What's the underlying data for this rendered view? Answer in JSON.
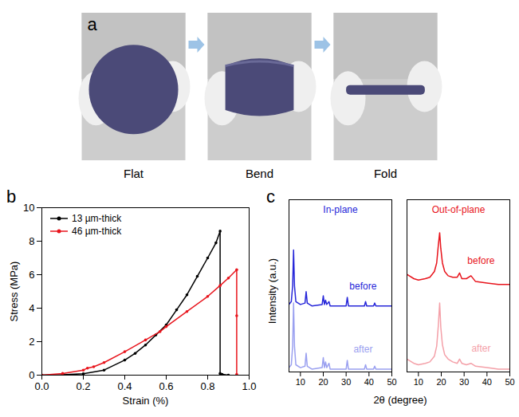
{
  "panel_a": {
    "panel": "a",
    "photos": [
      {
        "label": "Flat"
      },
      {
        "label": "Bend"
      },
      {
        "label": "Fold"
      }
    ]
  },
  "chart_data": [
    {
      "type": "line",
      "panel": "b",
      "xlabel": "Strain (%)",
      "ylabel": "Stress (MPa)",
      "xlim": [
        0,
        1.0
      ],
      "xticks": [
        {
          "value": 0,
          "label": "0.0"
        },
        {
          "value": 0.2,
          "label": "0.2"
        },
        {
          "value": 0.4,
          "label": "0.4"
        },
        {
          "value": 0.6,
          "label": "0.6"
        },
        {
          "value": 0.8,
          "label": "0.8"
        },
        {
          "value": 1.0,
          "label": "1.0"
        }
      ],
      "ylim": [
        0,
        10
      ],
      "yticks": [
        0,
        2,
        4,
        6,
        8,
        10
      ],
      "legend": "top-left",
      "series": [
        {
          "name": "13 µm-thick",
          "color": "#000000",
          "marker": "circle",
          "x": [
            0,
            0.1,
            0.2,
            0.3,
            0.4,
            0.45,
            0.5,
            0.55,
            0.6,
            0.65,
            0.7,
            0.75,
            0.8,
            0.84,
            0.86,
            0.86,
            0.87,
            0.9
          ],
          "values": [
            0,
            0.02,
            0.08,
            0.3,
            0.9,
            1.3,
            1.8,
            2.4,
            3.0,
            3.9,
            4.8,
            5.9,
            7.0,
            7.9,
            8.6,
            0.1,
            0.05,
            0
          ]
        },
        {
          "name": "46 µm-thick",
          "color": "#e8141c",
          "marker": "circle",
          "x": [
            0,
            0.1,
            0.2,
            0.22,
            0.25,
            0.3,
            0.4,
            0.5,
            0.57,
            0.6,
            0.7,
            0.8,
            0.86,
            0.9,
            0.94,
            0.94,
            0.94
          ],
          "values": [
            0,
            0.1,
            0.3,
            0.42,
            0.5,
            0.75,
            1.4,
            2.1,
            2.6,
            2.9,
            3.8,
            4.7,
            5.35,
            5.8,
            6.3,
            3.55,
            0.05
          ]
        }
      ]
    },
    {
      "type": "line",
      "panel": "c",
      "xlabel": "2θ (degree)",
      "ylabel": "Intensity (a.u.)",
      "tick_labels": "x",
      "xlim": [
        5,
        50
      ],
      "xticks": [
        10,
        20,
        30,
        40,
        50
      ],
      "ylim": [
        0,
        12
      ],
      "subplots": [
        {
          "title": "In-plane",
          "color": "#2626d9",
          "x": [
            5,
            6,
            6.6,
            7,
            7.4,
            8,
            10,
            12,
            12.5,
            13,
            15,
            19.5,
            20,
            20.5,
            21,
            21.5,
            22.5,
            23,
            26,
            30,
            30.5,
            31,
            38,
            38.5,
            39,
            42,
            42.5,
            43,
            50
          ],
          "series": [
            {
              "name": "before",
              "color": "#2626d9",
              "values": [
                4.7,
                4.9,
                6.0,
                8.5,
                6.0,
                4.9,
                4.7,
                4.8,
                5.6,
                4.8,
                4.6,
                4.7,
                5.3,
                4.7,
                5.0,
                4.7,
                4.9,
                4.6,
                4.6,
                4.6,
                5.2,
                4.6,
                4.6,
                4.9,
                4.6,
                4.6,
                4.8,
                4.6,
                4.6
              ]
            },
            {
              "name": "after",
              "color": "#9aa0f0",
              "values": [
                0.3,
                0.5,
                1.8,
                4.8,
                1.8,
                0.5,
                0.3,
                0.4,
                1.3,
                0.4,
                0.2,
                0.3,
                1.0,
                0.3,
                0.7,
                0.3,
                0.6,
                0.2,
                0.2,
                0.2,
                0.8,
                0.2,
                0.2,
                0.5,
                0.2,
                0.2,
                0.4,
                0.2,
                0.2
              ]
            }
          ]
        },
        {
          "title": "Out-of-plane",
          "color": "#e8141c",
          "x": [
            5,
            8,
            10,
            13,
            15,
            17,
            18,
            18.7,
            19.3,
            19.8,
            20.5,
            21.5,
            23,
            25,
            27,
            28,
            29,
            31,
            33,
            35,
            40,
            45,
            50
          ],
          "series": [
            {
              "name": "before",
              "color": "#e8141c",
              "values": [
                6.8,
                6.5,
                6.4,
                6.5,
                6.6,
                7.0,
                7.6,
                8.8,
                9.7,
                8.6,
                7.6,
                7.0,
                6.7,
                6.6,
                6.6,
                6.9,
                6.5,
                6.5,
                6.7,
                6.3,
                6.2,
                6.1,
                6.1
              ]
            },
            {
              "name": "after",
              "color": "#f4a0a8",
              "values": [
                0.9,
                0.6,
                0.5,
                0.6,
                0.7,
                1.1,
                1.8,
                3.2,
                4.8,
                3.1,
                1.9,
                1.2,
                0.9,
                0.7,
                0.6,
                0.9,
                0.6,
                0.5,
                0.6,
                0.4,
                0.3,
                0.2,
                0.2
              ]
            }
          ]
        }
      ]
    }
  ]
}
